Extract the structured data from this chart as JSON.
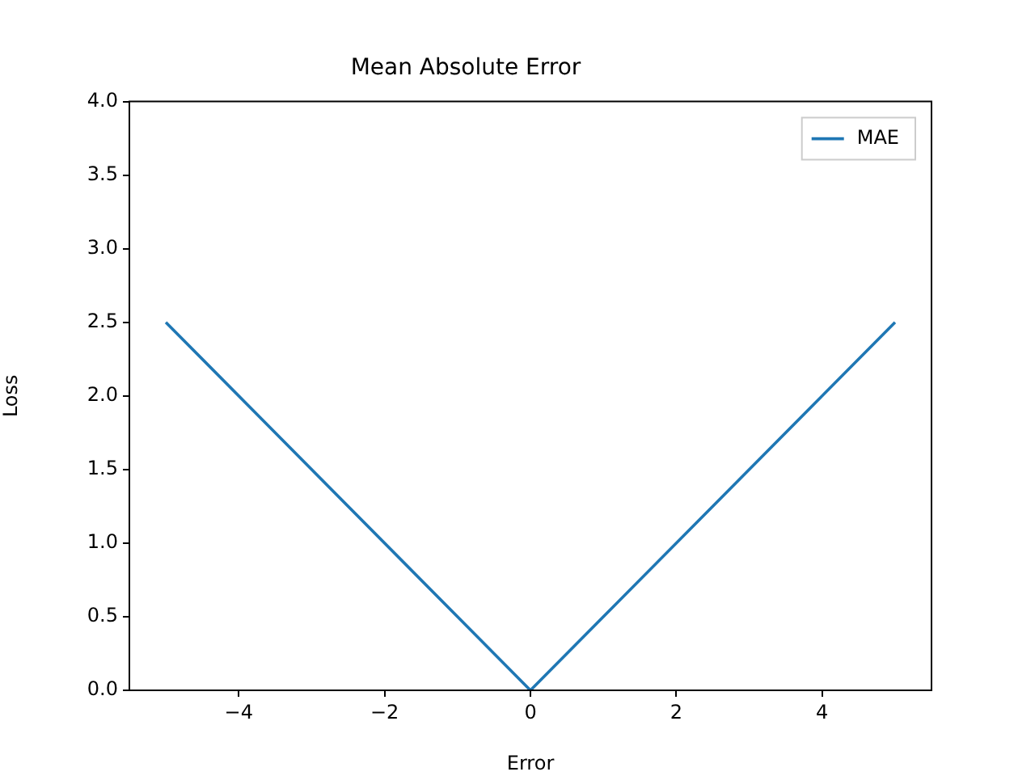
{
  "chart_data": {
    "type": "line",
    "title": "Mean Absolute Error",
    "xlabel": "Error",
    "ylabel": "Loss",
    "x": [
      -5,
      0,
      5
    ],
    "series": [
      {
        "name": "MAE",
        "color": "#1f77b4",
        "values": [
          2.5,
          0,
          2.5
        ]
      }
    ],
    "xlim": [
      -5.5,
      5.5
    ],
    "xticks": [
      {
        "value": -4,
        "label": "−4"
      },
      {
        "value": -2,
        "label": "−2"
      },
      {
        "value": 0,
        "label": "0"
      },
      {
        "value": 2,
        "label": "2"
      },
      {
        "value": 4,
        "label": "4"
      }
    ],
    "ylim": [
      0,
      4
    ],
    "yticks": [
      {
        "value": 0,
        "label": "0.0"
      },
      {
        "value": 0.5,
        "label": "0.5"
      },
      {
        "value": 1,
        "label": "1.0"
      },
      {
        "value": 1.5,
        "label": "1.5"
      },
      {
        "value": 2,
        "label": "2.0"
      },
      {
        "value": 2.5,
        "label": "2.5"
      },
      {
        "value": 3,
        "label": "3.0"
      },
      {
        "value": 3.5,
        "label": "3.5"
      },
      {
        "value": 4,
        "label": "4.0"
      }
    ],
    "grid": false,
    "legend": "top right",
    "marker": "none",
    "line_style": "solid"
  }
}
